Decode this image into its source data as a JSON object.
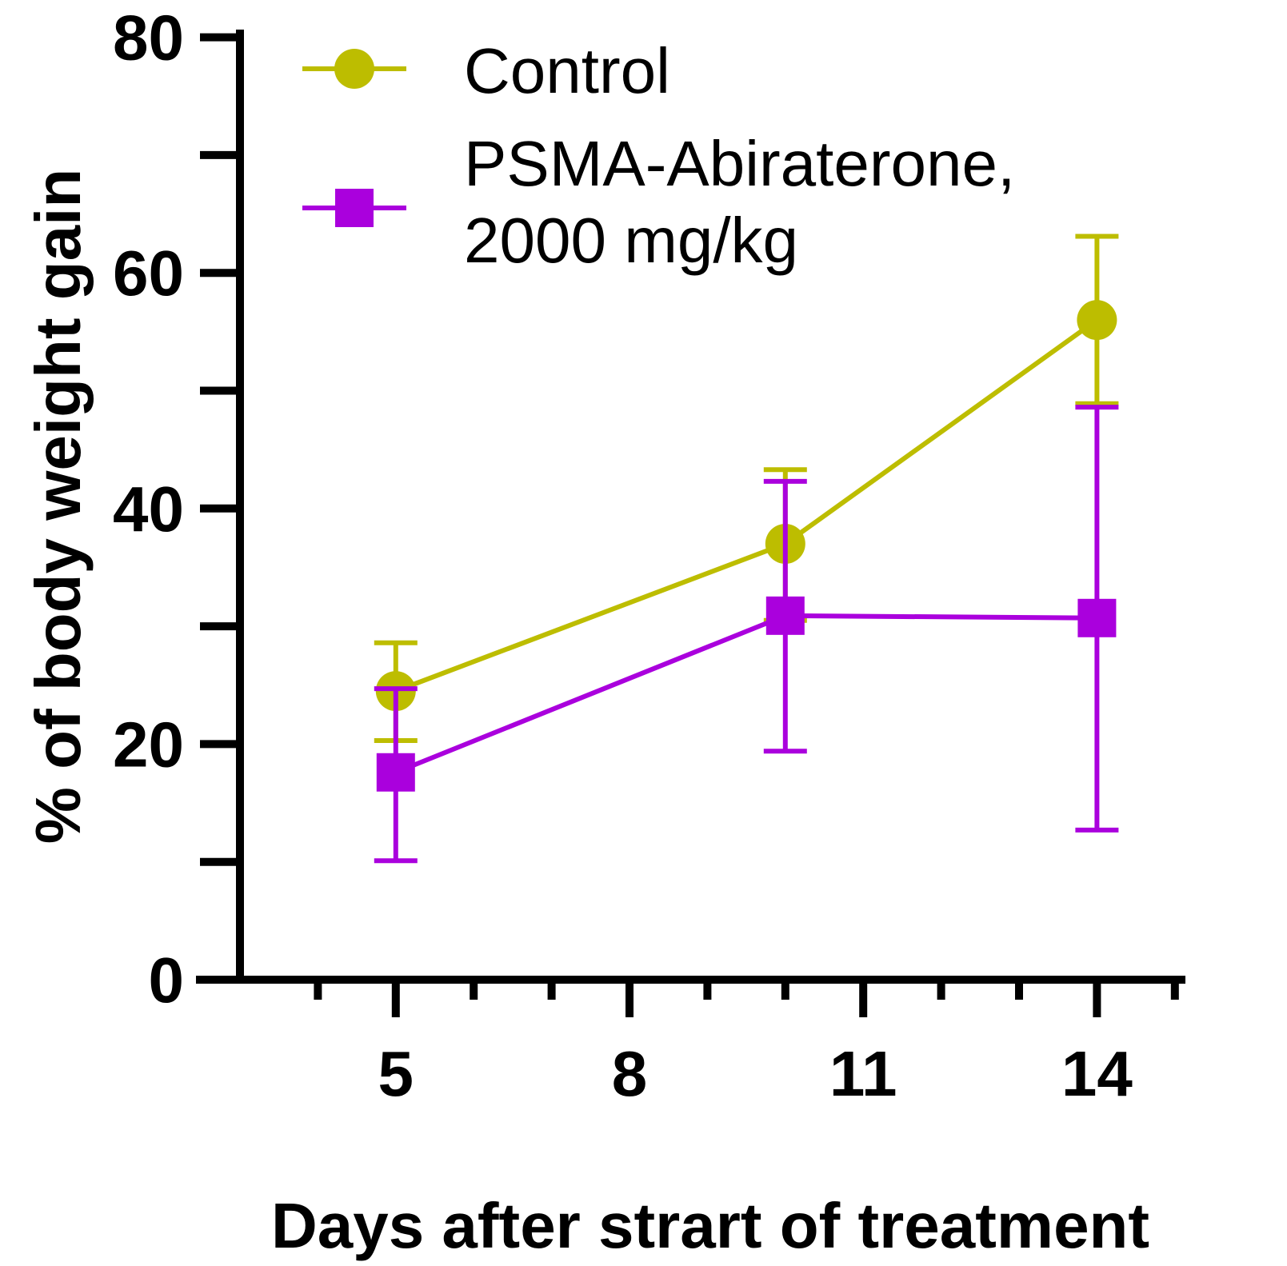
{
  "chart_data": {
    "type": "line",
    "xlabel": "Days after strart of treatment",
    "ylabel": "% of body weight gain",
    "xlim": [
      3,
      15
    ],
    "ylim": [
      0,
      80
    ],
    "x_tick_labels": [
      "5",
      "8",
      "11",
      "14"
    ],
    "y_tick_labels": [
      "0",
      "20",
      "40",
      "60",
      "80"
    ],
    "grid": false,
    "legend_placement": "top-left",
    "series": [
      {
        "name": "Control",
        "color": "#bdbd00",
        "marker": "circle",
        "points": [
          {
            "x": 5,
            "y": 24.5,
            "err_low": 20.3,
            "err_high": 28.6
          },
          {
            "x": 10,
            "y": 37.0,
            "err_low": 30.5,
            "err_high": 43.3
          },
          {
            "x": 14,
            "y": 56.0,
            "err_low": 48.9,
            "err_high": 63.1
          }
        ]
      },
      {
        "name": "PSMA-Abiraterone,\n2000 mg/kg",
        "color": "#aa00dd",
        "marker": "square",
        "points": [
          {
            "x": 5,
            "y": 17.6,
            "err_low": 10.1,
            "err_high": 24.7
          },
          {
            "x": 10,
            "y": 30.9,
            "err_low": 19.4,
            "err_high": 42.3
          },
          {
            "x": 14,
            "y": 30.7,
            "err_low": 12.7,
            "err_high": 48.6
          }
        ]
      }
    ]
  }
}
